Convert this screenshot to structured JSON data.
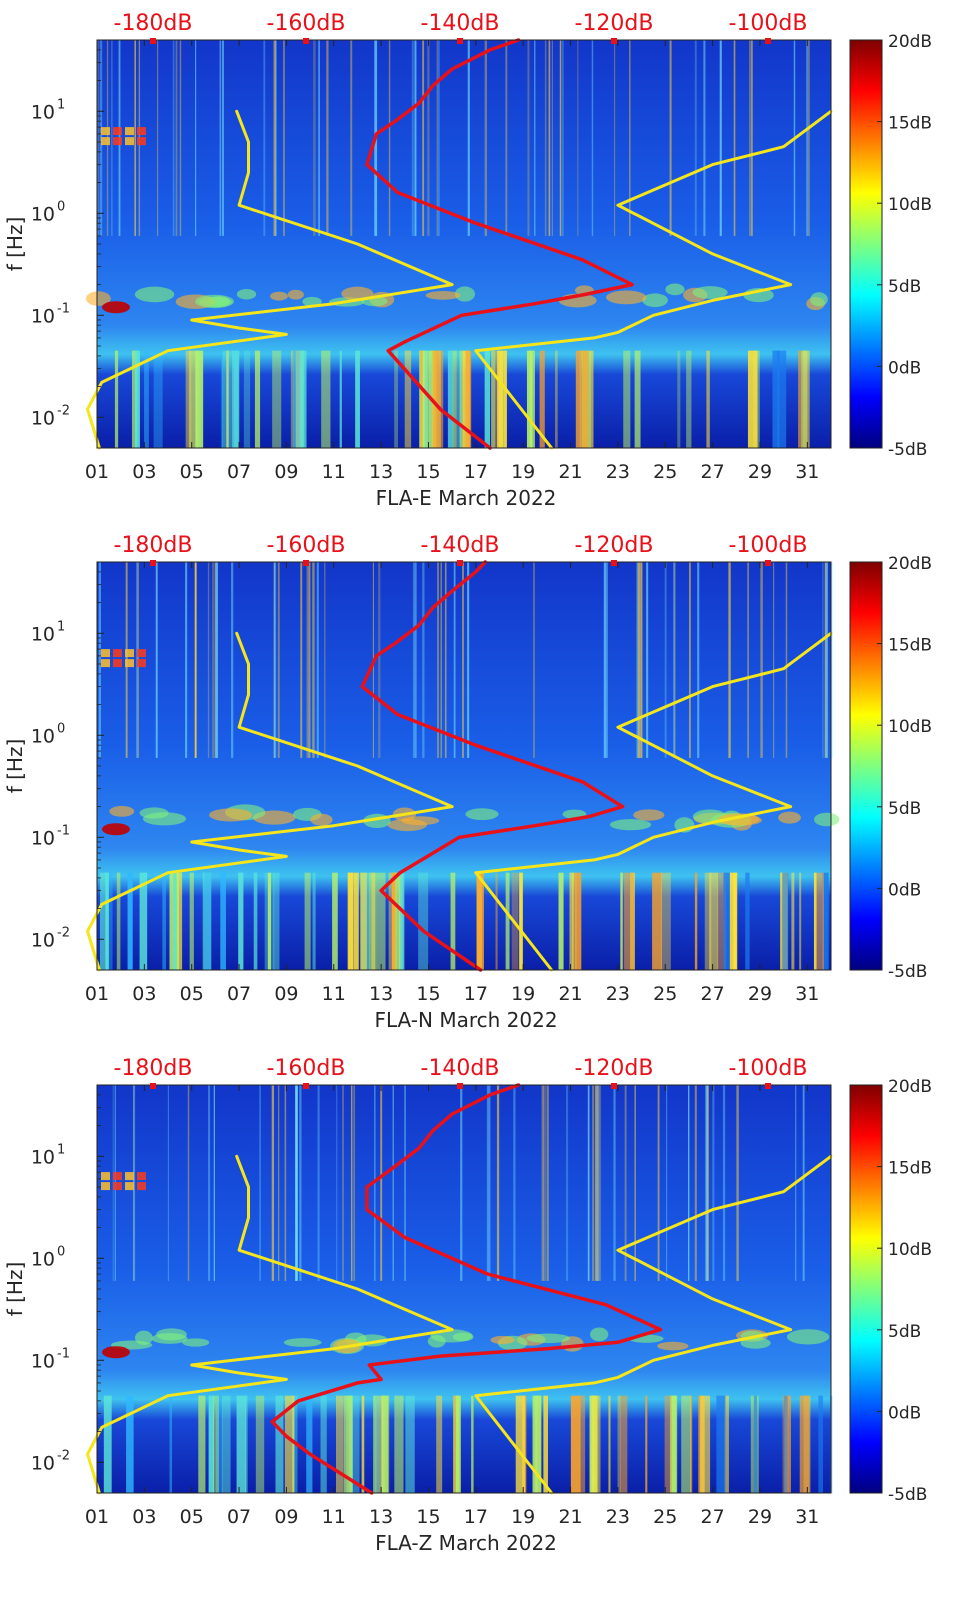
{
  "chart_data": [
    {
      "type": "heatmap",
      "title": "",
      "xlabel": "FLA-E March 2022",
      "ylabel": "f [Hz]",
      "x_ticks": [
        "01",
        "03",
        "05",
        "07",
        "09",
        "11",
        "13",
        "15",
        "17",
        "19",
        "21",
        "23",
        "25",
        "27",
        "29",
        "31"
      ],
      "y_ticks": [
        "10^-2",
        "10^-1",
        "10^0",
        "10^1"
      ],
      "ylim": [
        0.005,
        50
      ],
      "y_scale": "log",
      "top_axis_labels": [
        "-180dB",
        "-160dB",
        "-140dB",
        "-120dB",
        "-100dB"
      ],
      "colorbar": {
        "ticks": [
          "20dB",
          "15dB",
          "10dB",
          "5dB",
          "0dB",
          "-5dB"
        ],
        "range": [
          -5,
          20
        ]
      },
      "series": [
        {
          "color": "#e8111a",
          "points": [
            [
              17.6,
              0.005
            ],
            [
              15.5,
              0.012
            ],
            [
              13.3,
              0.045
            ],
            [
              14.0,
              0.055
            ],
            [
              16.4,
              0.1
            ],
            [
              19.5,
              0.13
            ],
            [
              21.6,
              0.16
            ],
            [
              23.6,
              0.2
            ],
            [
              21.5,
              0.35
            ],
            [
              17.0,
              0.8
            ],
            [
              13.7,
              1.6
            ],
            [
              12.4,
              3.0
            ],
            [
              12.8,
              6.0
            ],
            [
              13.6,
              8.0
            ],
            [
              14.6,
              12
            ],
            [
              15.2,
              18
            ],
            [
              16.0,
              26
            ],
            [
              17.6,
              40
            ],
            [
              18.8,
              50
            ]
          ]
        },
        {
          "color": "#f5e51b",
          "points": [
            [
              1.1,
              0.005
            ],
            [
              0.6,
              0.012
            ],
            [
              1.2,
              0.022
            ],
            [
              4.0,
              0.045
            ],
            [
              9.0,
              0.065
            ],
            [
              7.0,
              0.075
            ],
            [
              5.0,
              0.09
            ],
            [
              11.0,
              0.13
            ],
            [
              16.0,
              0.2
            ],
            [
              12.0,
              0.5
            ],
            [
              7.0,
              1.2
            ],
            [
              7.4,
              2.5
            ],
            [
              7.4,
              5.0
            ],
            [
              6.9,
              10
            ]
          ]
        },
        {
          "color": "#f5e51b",
          "points": [
            [
              20.2,
              0.005
            ],
            [
              17.0,
              0.045
            ],
            [
              22.0,
              0.06
            ],
            [
              23.0,
              0.068
            ],
            [
              24.5,
              0.1
            ],
            [
              27.0,
              0.14
            ],
            [
              30.3,
              0.2
            ],
            [
              27.0,
              0.4
            ],
            [
              23.0,
              1.2
            ],
            [
              27.0,
              3.0
            ],
            [
              30.0,
              4.5
            ],
            [
              32.0,
              10
            ]
          ]
        }
      ]
    },
    {
      "type": "heatmap",
      "title": "",
      "xlabel": "FLA-N March 2022",
      "ylabel": "f [Hz]",
      "x_ticks": [
        "01",
        "03",
        "05",
        "07",
        "09",
        "11",
        "13",
        "15",
        "17",
        "19",
        "21",
        "23",
        "25",
        "27",
        "29",
        "31"
      ],
      "y_ticks": [
        "10^-2",
        "10^-1",
        "10^0",
        "10^1"
      ],
      "ylim": [
        0.005,
        50
      ],
      "y_scale": "log",
      "top_axis_labels": [
        "-180dB",
        "-160dB",
        "-140dB",
        "-120dB",
        "-100dB"
      ],
      "colorbar": {
        "ticks": [
          "20dB",
          "15dB",
          "10dB",
          "5dB",
          "0dB",
          "-5dB"
        ],
        "range": [
          -5,
          20
        ]
      },
      "series": [
        {
          "color": "#e8111a",
          "points": [
            [
              17.2,
              0.005
            ],
            [
              14.8,
              0.012
            ],
            [
              13.0,
              0.03
            ],
            [
              13.8,
              0.045
            ],
            [
              16.3,
              0.1
            ],
            [
              19.5,
              0.13
            ],
            [
              21.8,
              0.16
            ],
            [
              23.2,
              0.2
            ],
            [
              21.5,
              0.35
            ],
            [
              17.0,
              0.8
            ],
            [
              13.7,
              1.6
            ],
            [
              12.2,
              3.0
            ],
            [
              12.8,
              6.0
            ],
            [
              13.6,
              8.0
            ],
            [
              14.6,
              12
            ],
            [
              15.2,
              18
            ],
            [
              16.0,
              26
            ],
            [
              17.0,
              40
            ],
            [
              17.4,
              50
            ]
          ]
        },
        {
          "color": "#f5e51b",
          "points": [
            [
              1.1,
              0.005
            ],
            [
              0.6,
              0.012
            ],
            [
              1.2,
              0.022
            ],
            [
              4.0,
              0.045
            ],
            [
              9.0,
              0.065
            ],
            [
              7.0,
              0.075
            ],
            [
              5.0,
              0.09
            ],
            [
              11.0,
              0.13
            ],
            [
              16.0,
              0.2
            ],
            [
              12.0,
              0.5
            ],
            [
              7.0,
              1.2
            ],
            [
              7.4,
              2.5
            ],
            [
              7.4,
              5.0
            ],
            [
              6.9,
              10
            ]
          ]
        },
        {
          "color": "#f5e51b",
          "points": [
            [
              20.2,
              0.005
            ],
            [
              17.0,
              0.045
            ],
            [
              22.0,
              0.06
            ],
            [
              23.0,
              0.068
            ],
            [
              24.5,
              0.1
            ],
            [
              27.0,
              0.14
            ],
            [
              30.3,
              0.2
            ],
            [
              27.0,
              0.4
            ],
            [
              23.0,
              1.2
            ],
            [
              27.0,
              3.0
            ],
            [
              30.0,
              4.5
            ],
            [
              32.0,
              10
            ]
          ]
        }
      ]
    },
    {
      "type": "heatmap",
      "title": "",
      "xlabel": "FLA-Z March 2022",
      "ylabel": "f [Hz]",
      "x_ticks": [
        "01",
        "03",
        "05",
        "07",
        "09",
        "11",
        "13",
        "15",
        "17",
        "19",
        "21",
        "23",
        "25",
        "27",
        "29",
        "31"
      ],
      "y_ticks": [
        "10^-2",
        "10^-1",
        "10^0",
        "10^1"
      ],
      "ylim": [
        0.005,
        50
      ],
      "y_scale": "log",
      "top_axis_labels": [
        "-180dB",
        "-160dB",
        "-140dB",
        "-120dB",
        "-100dB"
      ],
      "colorbar": {
        "ticks": [
          "20dB",
          "15dB",
          "10dB",
          "5dB",
          "0dB",
          "-5dB"
        ],
        "range": [
          -5,
          20
        ]
      },
      "series": [
        {
          "color": "#e8111a",
          "points": [
            [
              12.6,
              0.005
            ],
            [
              10.0,
              0.012
            ],
            [
              9.0,
              0.018
            ],
            [
              8.4,
              0.025
            ],
            [
              9.5,
              0.04
            ],
            [
              12.0,
              0.06
            ],
            [
              13.0,
              0.065
            ],
            [
              12.5,
              0.09
            ],
            [
              15.5,
              0.11
            ],
            [
              20.0,
              0.13
            ],
            [
              23.0,
              0.15
            ],
            [
              24.8,
              0.2
            ],
            [
              22.5,
              0.35
            ],
            [
              17.5,
              0.7
            ],
            [
              14.0,
              1.6
            ],
            [
              12.4,
              3.0
            ],
            [
              12.4,
              5.0
            ],
            [
              13.6,
              8.0
            ],
            [
              14.6,
              12
            ],
            [
              15.2,
              18
            ],
            [
              16.0,
              26
            ],
            [
              17.6,
              40
            ],
            [
              18.8,
              50
            ]
          ]
        },
        {
          "color": "#f5e51b",
          "points": [
            [
              1.1,
              0.005
            ],
            [
              0.6,
              0.012
            ],
            [
              1.2,
              0.022
            ],
            [
              4.0,
              0.045
            ],
            [
              9.0,
              0.065
            ],
            [
              7.0,
              0.075
            ],
            [
              5.0,
              0.09
            ],
            [
              11.0,
              0.13
            ],
            [
              16.0,
              0.2
            ],
            [
              12.0,
              0.5
            ],
            [
              7.0,
              1.2
            ],
            [
              7.4,
              2.5
            ],
            [
              7.4,
              5.0
            ],
            [
              6.9,
              10
            ]
          ]
        },
        {
          "color": "#f5e51b",
          "points": [
            [
              20.2,
              0.005
            ],
            [
              17.0,
              0.045
            ],
            [
              22.0,
              0.06
            ],
            [
              23.0,
              0.068
            ],
            [
              24.5,
              0.1
            ],
            [
              27.0,
              0.14
            ],
            [
              30.3,
              0.2
            ],
            [
              27.0,
              0.4
            ],
            [
              23.0,
              1.2
            ],
            [
              27.0,
              3.0
            ],
            [
              30.0,
              4.5
            ],
            [
              32.0,
              10
            ]
          ]
        }
      ]
    }
  ]
}
